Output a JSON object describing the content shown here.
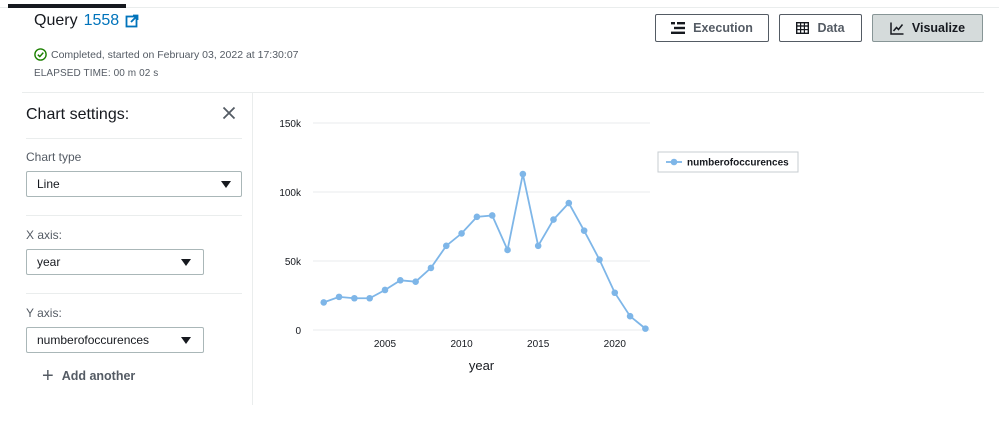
{
  "header": {
    "query_label": "Query",
    "query_id": "1558",
    "status_text": "Completed, started on February 03, 2022 at 17:30:07",
    "elapsed_text": "ELAPSED TIME: 00 m 02 s"
  },
  "toolbar": {
    "execution_label": "Execution",
    "data_label": "Data",
    "visualize_label": "Visualize",
    "active": "Visualize"
  },
  "settings": {
    "title": "Chart settings:",
    "chart_type_label": "Chart type",
    "chart_type_value": "Line",
    "x_axis_label": "X axis:",
    "x_axis_value": "year",
    "y_axis_label": "Y axis:",
    "y_axis_value": "numberofoccurences",
    "add_another_label": "Add another"
  },
  "colors": {
    "line": "#7eb6e8",
    "link": "#0073bb",
    "success": "#1d8102"
  },
  "chart_data": {
    "type": "line",
    "xlabel": "year",
    "ylabel": "",
    "x": [
      2001,
      2002,
      2003,
      2004,
      2005,
      2006,
      2007,
      2008,
      2009,
      2010,
      2011,
      2012,
      2013,
      2014,
      2015,
      2016,
      2017,
      2018,
      2019,
      2020,
      2021,
      2022
    ],
    "series": [
      {
        "name": "numberofoccurences",
        "values": [
          20000,
          24000,
          23000,
          23000,
          29000,
          36000,
          35000,
          45000,
          61000,
          70000,
          82000,
          83000,
          58000,
          113000,
          61000,
          80000,
          92000,
          72000,
          51000,
          27000,
          10000,
          1000
        ]
      }
    ],
    "xlim": [
      2000.3,
      2022.3
    ],
    "ylim": [
      0,
      150000
    ],
    "xticks": [
      2005,
      2010,
      2015,
      2020
    ],
    "yticks": [
      0,
      50000,
      100000,
      150000
    ],
    "ytick_labels": [
      "0",
      "50k",
      "100k",
      "150k"
    ],
    "grid": true,
    "legend": "top-right"
  }
}
